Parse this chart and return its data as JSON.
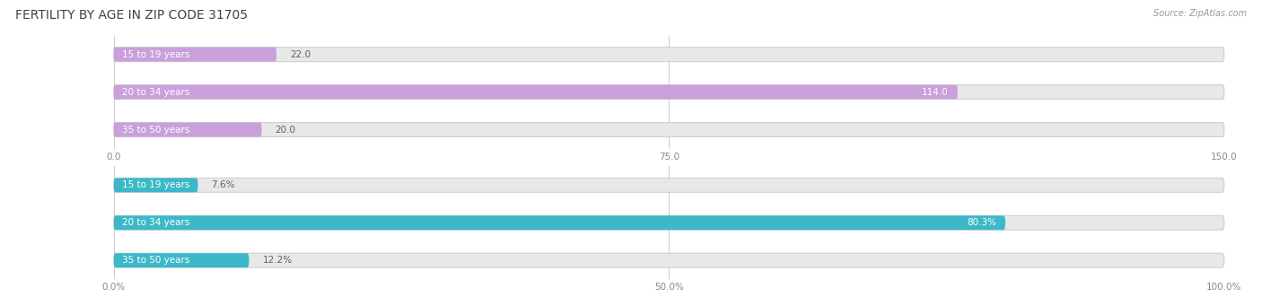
{
  "title": "Fertility by Age in Zip Code 31705",
  "source": "Source: ZipAtlas.com",
  "top_chart": {
    "categories": [
      "15 to 19 years",
      "20 to 34 years",
      "35 to 50 years"
    ],
    "values": [
      22.0,
      114.0,
      20.0
    ],
    "bar_color": "#c9a0dc",
    "xlim": [
      0,
      150
    ],
    "xticks": [
      0.0,
      75.0,
      150.0
    ],
    "xtick_labels": [
      "0.0",
      "75.0",
      "150.0"
    ]
  },
  "bottom_chart": {
    "categories": [
      "15 to 19 years",
      "20 to 34 years",
      "35 to 50 years"
    ],
    "values": [
      7.6,
      80.3,
      12.2
    ],
    "bar_color": "#3cb8c8",
    "xlim": [
      0,
      100
    ],
    "xticks": [
      0.0,
      50.0,
      100.0
    ],
    "xtick_labels": [
      "0.0%",
      "50.0%",
      "100.0%"
    ]
  },
  "background_color": "#ffffff",
  "bar_bg_color": "#e8e8e8",
  "bar_bg_edge_color": "#d0d0d0",
  "grid_color": "#cccccc",
  "title_color": "#404040",
  "label_color": "#606060",
  "tick_color": "#888888",
  "title_fontsize": 10,
  "label_fontsize": 7.5,
  "value_fontsize": 7.5,
  "tick_fontsize": 7.5
}
